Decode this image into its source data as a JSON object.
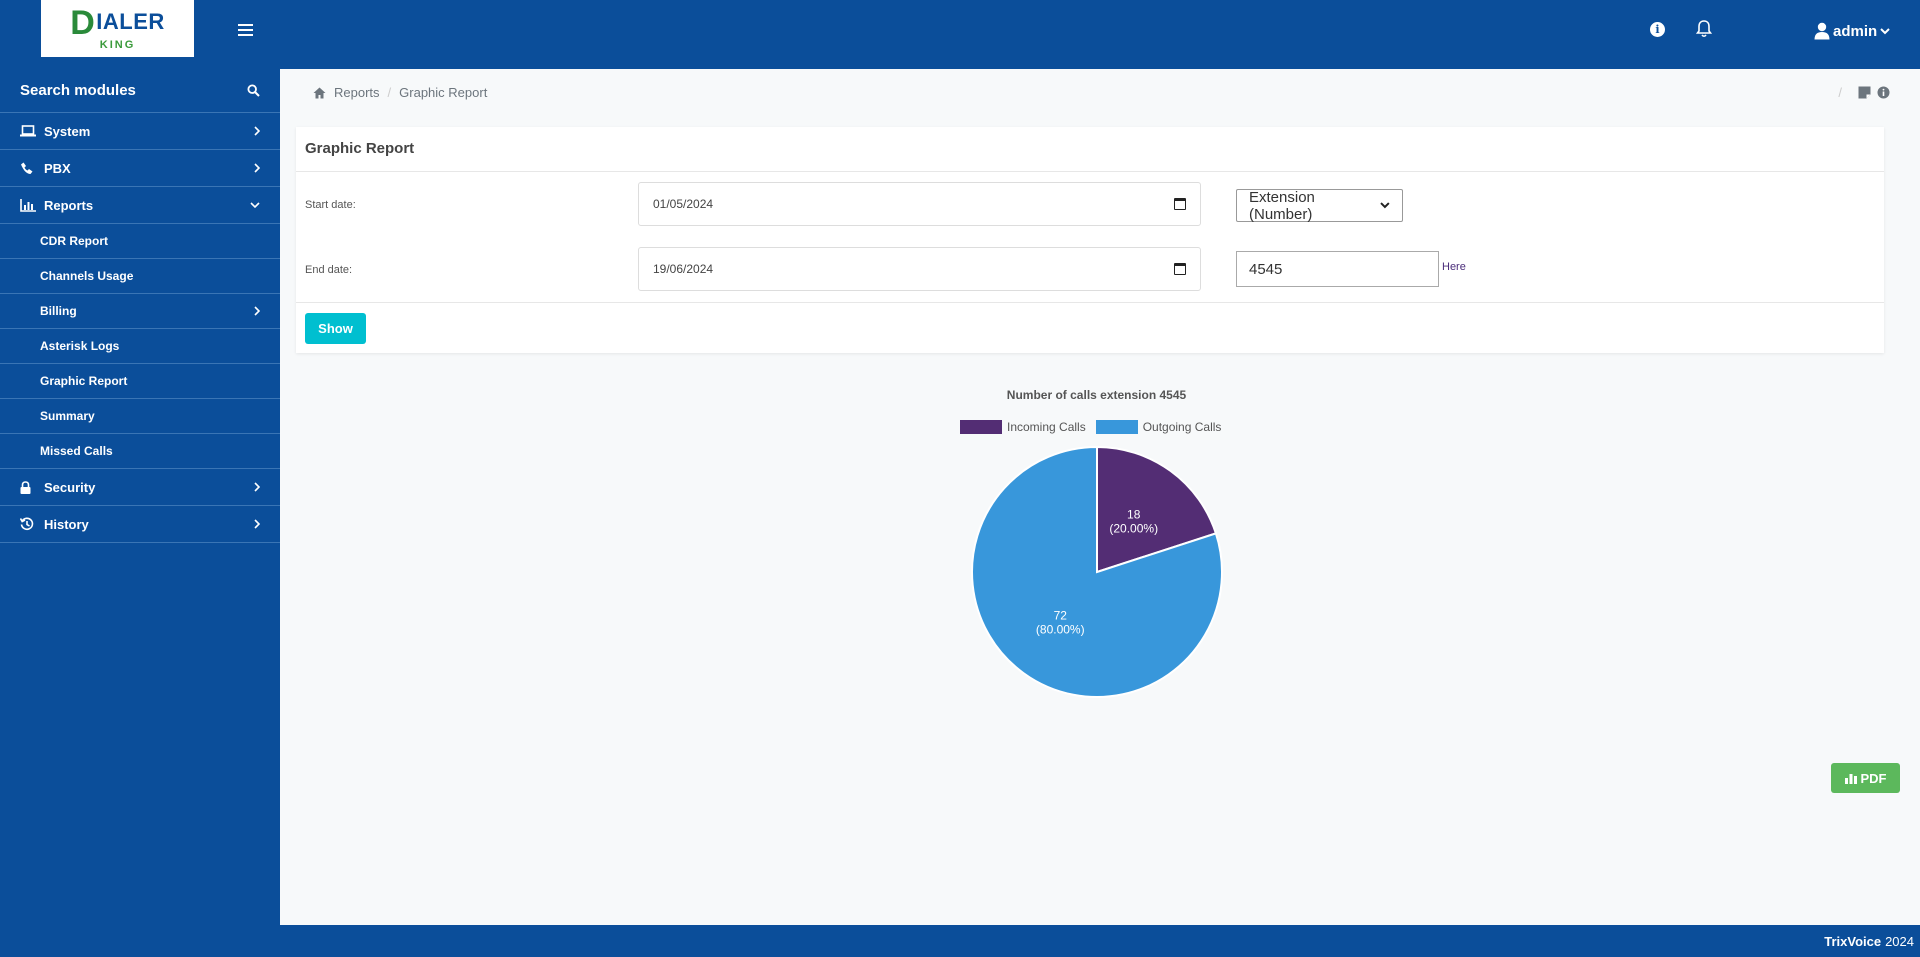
{
  "header": {
    "logo_main": "IALER",
    "logo_letter": "D",
    "logo_sub": "KING",
    "user": "admin",
    "accent": "#0b4e9a"
  },
  "sidebar": {
    "search_label": "Search modules",
    "items": [
      {
        "label": "System",
        "icon": "laptop-icon"
      },
      {
        "label": "PBX",
        "icon": "phone-icon"
      },
      {
        "label": "Reports",
        "icon": "bar-chart-icon"
      }
    ],
    "report_subs": [
      "CDR Report",
      "Channels Usage",
      "Billing",
      "Asterisk Logs",
      "Graphic Report",
      "Summary",
      "Missed Calls"
    ],
    "bottom_items": [
      {
        "label": "Security",
        "icon": "lock-icon"
      },
      {
        "label": "History",
        "icon": "history-icon"
      }
    ]
  },
  "breadcrumb": {
    "root": "Reports",
    "current": "Graphic Report",
    "sep": "/"
  },
  "form": {
    "title": "Graphic Report",
    "start_label": "Start date:",
    "start_value": "01/05/2024",
    "end_label": "End date:",
    "end_value": "19/06/2024",
    "filter_select": "Extension (Number)",
    "extension_value": "4545",
    "here_link": "Here",
    "show_button": "Show"
  },
  "chart_data": {
    "type": "pie",
    "title": "Number of calls extension 4545",
    "legend_position": "top",
    "categories": [
      "Incoming Calls",
      "Outgoing Calls"
    ],
    "values": [
      18,
      72
    ],
    "percent_labels": [
      "(20.00%)",
      "(80.00%)"
    ],
    "colors": [
      "#532d74",
      "#3897db"
    ]
  },
  "actions": {
    "pdf_button": "PDF"
  },
  "footer": {
    "brand": "TrixVoice",
    "year": "2024"
  }
}
